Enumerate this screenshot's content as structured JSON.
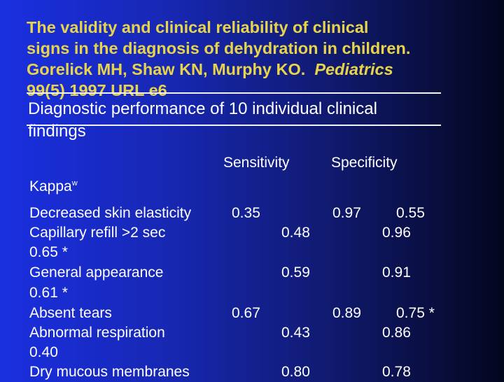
{
  "title": {
    "line1": "The validity and clinical reliability of clinical",
    "line2": "signs in the diagnosis of dehydration in children.",
    "line3_authors": "Gorelick MH, Shaw KN, Murphy KO.",
    "line3_journal": "Pediatrics",
    "line4": "99(5) 1997 URL e6"
  },
  "subtitle": {
    "line1": "Diagnostic performance of 10 individual clinical",
    "line2": "findings"
  },
  "table": {
    "headers": {
      "sensitivity": "Sensitivity",
      "specificity": "Specificity",
      "kappa": "Kappa",
      "kappa_sup": "w"
    },
    "rows": [
      {
        "finding": "Decreased skin elasticity",
        "sensitivity": "0.35",
        "specificity": "0.97",
        "kappa": "0.55"
      },
      {
        "finding": "Capillary refill >2 sec",
        "sensitivity": "0.48",
        "specificity": "0.96",
        "kappa": "0.65 *"
      },
      {
        "finding": "General appearance",
        "sensitivity": "0.59",
        "specificity": "0.91",
        "kappa": "0.61 *"
      },
      {
        "finding": "Absent tears",
        "sensitivity": "0.67",
        "specificity": "0.89",
        "kappa": "0.75 *"
      },
      {
        "finding": "Abnormal respiration",
        "sensitivity": "0.43",
        "specificity": "0.86",
        "kappa": "0.40"
      },
      {
        "finding": "Dry mucous membranes",
        "sensitivity": "0.80",
        "specificity": "0.78",
        "kappa": ""
      }
    ]
  }
}
